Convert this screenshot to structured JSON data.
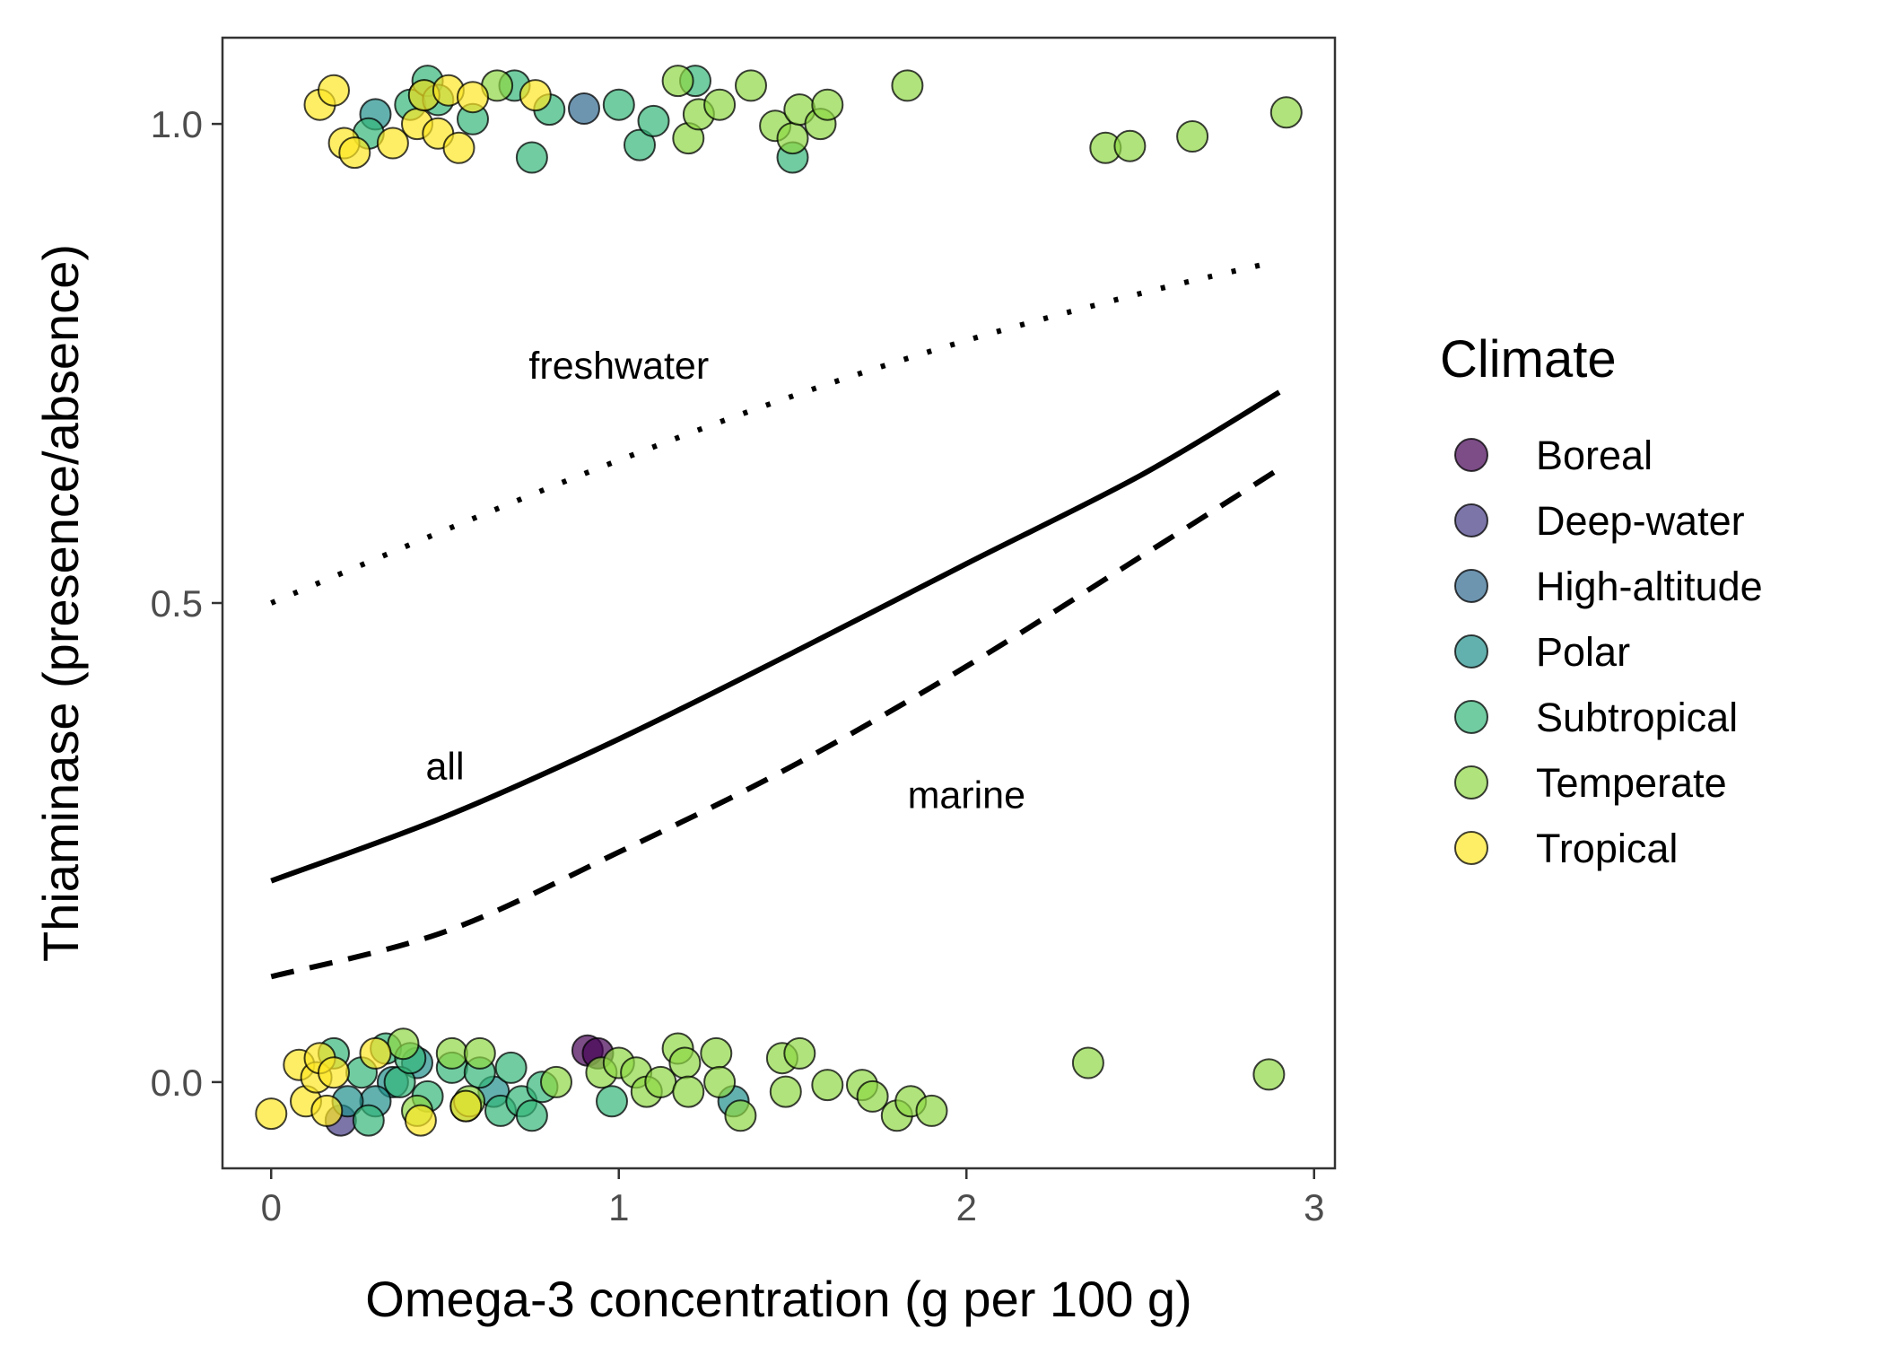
{
  "chart_data": {
    "type": "scatter",
    "xlabel": "Omega-3 concentration (g per 100 g)",
    "ylabel": "Thiaminase (presence/absence)",
    "xlim": [
      -0.14,
      3.06
    ],
    "ylim": [
      -0.09,
      1.09
    ],
    "xticks": [
      0,
      1,
      2,
      3
    ],
    "xtick_labels": [
      "0",
      "1",
      "2",
      "3"
    ],
    "yticks": [
      0.0,
      0.5,
      1.0
    ],
    "ytick_labels": [
      "0.0",
      "0.5",
      "1.0"
    ],
    "grid": false,
    "legend": {
      "title": "Climate",
      "placement": "right",
      "entries": [
        "Boreal",
        "Deep-water",
        "High-altitude",
        "Polar",
        "Subtropical",
        "Temperate",
        "Tropical"
      ]
    },
    "colors": {
      "Boreal": "#440154",
      "Deep-water": "#443A83",
      "High-altitude": "#31688E",
      "Polar": "#21908C",
      "Subtropical": "#35B779",
      "Temperate": "#8FD744",
      "Tropical": "#FDE725"
    },
    "points": [
      {
        "x": 0.2,
        "y": -0.04,
        "climate": "Deep-water"
      },
      {
        "x": 0.91,
        "y": 0.033,
        "climate": "Boreal"
      },
      {
        "x": 0.94,
        "y": 0.03,
        "climate": "Boreal"
      },
      {
        "x": 0.9,
        "y": 1.016,
        "climate": "High-altitude"
      },
      {
        "x": 0.35,
        "y": 0.0,
        "climate": "Polar"
      },
      {
        "x": 0.3,
        "y": -0.02,
        "climate": "Polar"
      },
      {
        "x": 0.42,
        "y": 0.02,
        "climate": "Polar"
      },
      {
        "x": 0.64,
        "y": -0.01,
        "climate": "Polar"
      },
      {
        "x": 0.22,
        "y": -0.02,
        "climate": "Polar"
      },
      {
        "x": 1.33,
        "y": -0.02,
        "climate": "Polar"
      },
      {
        "x": 0.44,
        "y": 1.03,
        "climate": "Polar"
      },
      {
        "x": 0.3,
        "y": 1.01,
        "climate": "Polar"
      },
      {
        "x": 0.18,
        "y": 0.03,
        "climate": "Subtropical"
      },
      {
        "x": 0.26,
        "y": 0.01,
        "climate": "Subtropical"
      },
      {
        "x": 0.28,
        "y": -0.04,
        "climate": "Subtropical"
      },
      {
        "x": 0.33,
        "y": 0.035,
        "climate": "Subtropical"
      },
      {
        "x": 0.37,
        "y": 0.0,
        "climate": "Subtropical"
      },
      {
        "x": 0.4,
        "y": 0.025,
        "climate": "Subtropical"
      },
      {
        "x": 0.45,
        "y": -0.015,
        "climate": "Subtropical"
      },
      {
        "x": 0.52,
        "y": 0.015,
        "climate": "Subtropical"
      },
      {
        "x": 0.56,
        "y": -0.025,
        "climate": "Subtropical"
      },
      {
        "x": 0.6,
        "y": 0.01,
        "climate": "Subtropical"
      },
      {
        "x": 0.66,
        "y": -0.03,
        "climate": "Subtropical"
      },
      {
        "x": 0.69,
        "y": 0.015,
        "climate": "Subtropical"
      },
      {
        "x": 0.72,
        "y": -0.02,
        "climate": "Subtropical"
      },
      {
        "x": 0.75,
        "y": -0.035,
        "climate": "Subtropical"
      },
      {
        "x": 0.78,
        "y": -0.005,
        "climate": "Subtropical"
      },
      {
        "x": 0.98,
        "y": -0.02,
        "climate": "Subtropical"
      },
      {
        "x": 0.28,
        "y": 0.99,
        "climate": "Subtropical"
      },
      {
        "x": 0.4,
        "y": 1.02,
        "climate": "Subtropical"
      },
      {
        "x": 0.45,
        "y": 1.045,
        "climate": "Subtropical"
      },
      {
        "x": 0.48,
        "y": 1.025,
        "climate": "Subtropical"
      },
      {
        "x": 0.58,
        "y": 1.005,
        "climate": "Subtropical"
      },
      {
        "x": 0.7,
        "y": 1.04,
        "climate": "Subtropical"
      },
      {
        "x": 0.75,
        "y": 0.965,
        "climate": "Subtropical"
      },
      {
        "x": 0.8,
        "y": 1.015,
        "climate": "Subtropical"
      },
      {
        "x": 1.0,
        "y": 1.02,
        "climate": "Subtropical"
      },
      {
        "x": 1.06,
        "y": 0.978,
        "climate": "Subtropical"
      },
      {
        "x": 1.1,
        "y": 1.003,
        "climate": "Subtropical"
      },
      {
        "x": 1.22,
        "y": 1.045,
        "climate": "Subtropical"
      },
      {
        "x": 1.5,
        "y": 0.965,
        "climate": "Subtropical"
      },
      {
        "x": 0.38,
        "y": 0.04,
        "climate": "Temperate"
      },
      {
        "x": 0.42,
        "y": -0.03,
        "climate": "Temperate"
      },
      {
        "x": 0.52,
        "y": 0.03,
        "climate": "Temperate"
      },
      {
        "x": 0.57,
        "y": -0.02,
        "climate": "Temperate"
      },
      {
        "x": 0.6,
        "y": 0.03,
        "climate": "Temperate"
      },
      {
        "x": 0.82,
        "y": 0.0,
        "climate": "Temperate"
      },
      {
        "x": 0.95,
        "y": 0.01,
        "climate": "Temperate"
      },
      {
        "x": 1.0,
        "y": 0.02,
        "climate": "Temperate"
      },
      {
        "x": 1.05,
        "y": 0.01,
        "climate": "Temperate"
      },
      {
        "x": 1.08,
        "y": -0.01,
        "climate": "Temperate"
      },
      {
        "x": 1.12,
        "y": 0.0,
        "climate": "Temperate"
      },
      {
        "x": 1.17,
        "y": 0.035,
        "climate": "Temperate"
      },
      {
        "x": 1.19,
        "y": 0.02,
        "climate": "Temperate"
      },
      {
        "x": 1.2,
        "y": -0.01,
        "climate": "Temperate"
      },
      {
        "x": 1.28,
        "y": 0.03,
        "climate": "Temperate"
      },
      {
        "x": 1.29,
        "y": 0.0,
        "climate": "Temperate"
      },
      {
        "x": 1.35,
        "y": -0.035,
        "climate": "Temperate"
      },
      {
        "x": 1.47,
        "y": 0.025,
        "climate": "Temperate"
      },
      {
        "x": 1.48,
        "y": -0.01,
        "climate": "Temperate"
      },
      {
        "x": 1.52,
        "y": 0.03,
        "climate": "Temperate"
      },
      {
        "x": 1.6,
        "y": -0.003,
        "climate": "Temperate"
      },
      {
        "x": 1.7,
        "y": -0.003,
        "climate": "Temperate"
      },
      {
        "x": 1.73,
        "y": -0.015,
        "climate": "Temperate"
      },
      {
        "x": 1.8,
        "y": -0.035,
        "climate": "Temperate"
      },
      {
        "x": 1.84,
        "y": -0.02,
        "climate": "Temperate"
      },
      {
        "x": 1.9,
        "y": -0.03,
        "climate": "Temperate"
      },
      {
        "x": 2.35,
        "y": 0.02,
        "climate": "Temperate"
      },
      {
        "x": 2.87,
        "y": 0.008,
        "climate": "Temperate"
      },
      {
        "x": 0.65,
        "y": 1.04,
        "climate": "Temperate"
      },
      {
        "x": 1.17,
        "y": 1.045,
        "climate": "Temperate"
      },
      {
        "x": 1.2,
        "y": 0.985,
        "climate": "Temperate"
      },
      {
        "x": 1.23,
        "y": 1.01,
        "climate": "Temperate"
      },
      {
        "x": 1.29,
        "y": 1.02,
        "climate": "Temperate"
      },
      {
        "x": 1.38,
        "y": 1.04,
        "climate": "Temperate"
      },
      {
        "x": 1.45,
        "y": 0.998,
        "climate": "Temperate"
      },
      {
        "x": 1.5,
        "y": 0.985,
        "climate": "Temperate"
      },
      {
        "x": 1.52,
        "y": 1.015,
        "climate": "Temperate"
      },
      {
        "x": 1.58,
        "y": 1.0,
        "climate": "Temperate"
      },
      {
        "x": 1.6,
        "y": 1.02,
        "climate": "Temperate"
      },
      {
        "x": 1.83,
        "y": 1.04,
        "climate": "Temperate"
      },
      {
        "x": 2.4,
        "y": 0.975,
        "climate": "Temperate"
      },
      {
        "x": 2.47,
        "y": 0.977,
        "climate": "Temperate"
      },
      {
        "x": 2.65,
        "y": 0.987,
        "climate": "Temperate"
      },
      {
        "x": 2.92,
        "y": 1.012,
        "climate": "Temperate"
      },
      {
        "x": 0.0,
        "y": -0.033,
        "climate": "Tropical"
      },
      {
        "x": 0.08,
        "y": 0.018,
        "climate": "Tropical"
      },
      {
        "x": 0.1,
        "y": -0.02,
        "climate": "Tropical"
      },
      {
        "x": 0.13,
        "y": 0.005,
        "climate": "Tropical"
      },
      {
        "x": 0.14,
        "y": 0.025,
        "climate": "Tropical"
      },
      {
        "x": 0.16,
        "y": -0.03,
        "climate": "Tropical"
      },
      {
        "x": 0.18,
        "y": 0.01,
        "climate": "Tropical"
      },
      {
        "x": 0.3,
        "y": 0.03,
        "climate": "Tropical"
      },
      {
        "x": 0.43,
        "y": -0.04,
        "climate": "Tropical"
      },
      {
        "x": 0.56,
        "y": -0.025,
        "climate": "Tropical"
      },
      {
        "x": 0.14,
        "y": 1.02,
        "climate": "Tropical"
      },
      {
        "x": 0.18,
        "y": 1.035,
        "climate": "Tropical"
      },
      {
        "x": 0.21,
        "y": 0.98,
        "climate": "Tropical"
      },
      {
        "x": 0.24,
        "y": 0.97,
        "climate": "Tropical"
      },
      {
        "x": 0.35,
        "y": 0.98,
        "climate": "Tropical"
      },
      {
        "x": 0.42,
        "y": 1.0,
        "climate": "Tropical"
      },
      {
        "x": 0.44,
        "y": 1.03,
        "climate": "Tropical"
      },
      {
        "x": 0.48,
        "y": 0.99,
        "climate": "Tropical"
      },
      {
        "x": 0.51,
        "y": 1.035,
        "climate": "Tropical"
      },
      {
        "x": 0.54,
        "y": 0.975,
        "climate": "Tropical"
      },
      {
        "x": 0.58,
        "y": 1.028,
        "climate": "Tropical"
      },
      {
        "x": 0.76,
        "y": 1.03,
        "climate": "Tropical"
      }
    ],
    "curves": [
      {
        "name": "freshwater",
        "style": "dotted",
        "x": [
          0,
          0.5,
          1,
          1.5,
          2,
          2.5,
          2.85
        ],
        "y": [
          0.5,
          0.576,
          0.649,
          0.716,
          0.774,
          0.823,
          0.853
        ]
      },
      {
        "name": "all",
        "style": "solid",
        "x": [
          0,
          0.5,
          1,
          1.5,
          2,
          2.5,
          2.9
        ],
        "y": [
          0.21,
          0.277,
          0.358,
          0.448,
          0.541,
          0.633,
          0.72
        ]
      },
      {
        "name": "marine",
        "style": "dashed",
        "x": [
          0,
          0.5,
          1,
          1.5,
          2,
          2.5,
          2.9
        ],
        "y": [
          0.11,
          0.157,
          0.24,
          0.33,
          0.434,
          0.548,
          0.64
        ]
      }
    ],
    "annotations": [
      {
        "text": "freshwater",
        "x": 1.0,
        "y": 0.748
      },
      {
        "text": "all",
        "x": 0.5,
        "y": 0.33
      },
      {
        "text": "marine",
        "x": 2.0,
        "y": 0.3
      }
    ]
  }
}
